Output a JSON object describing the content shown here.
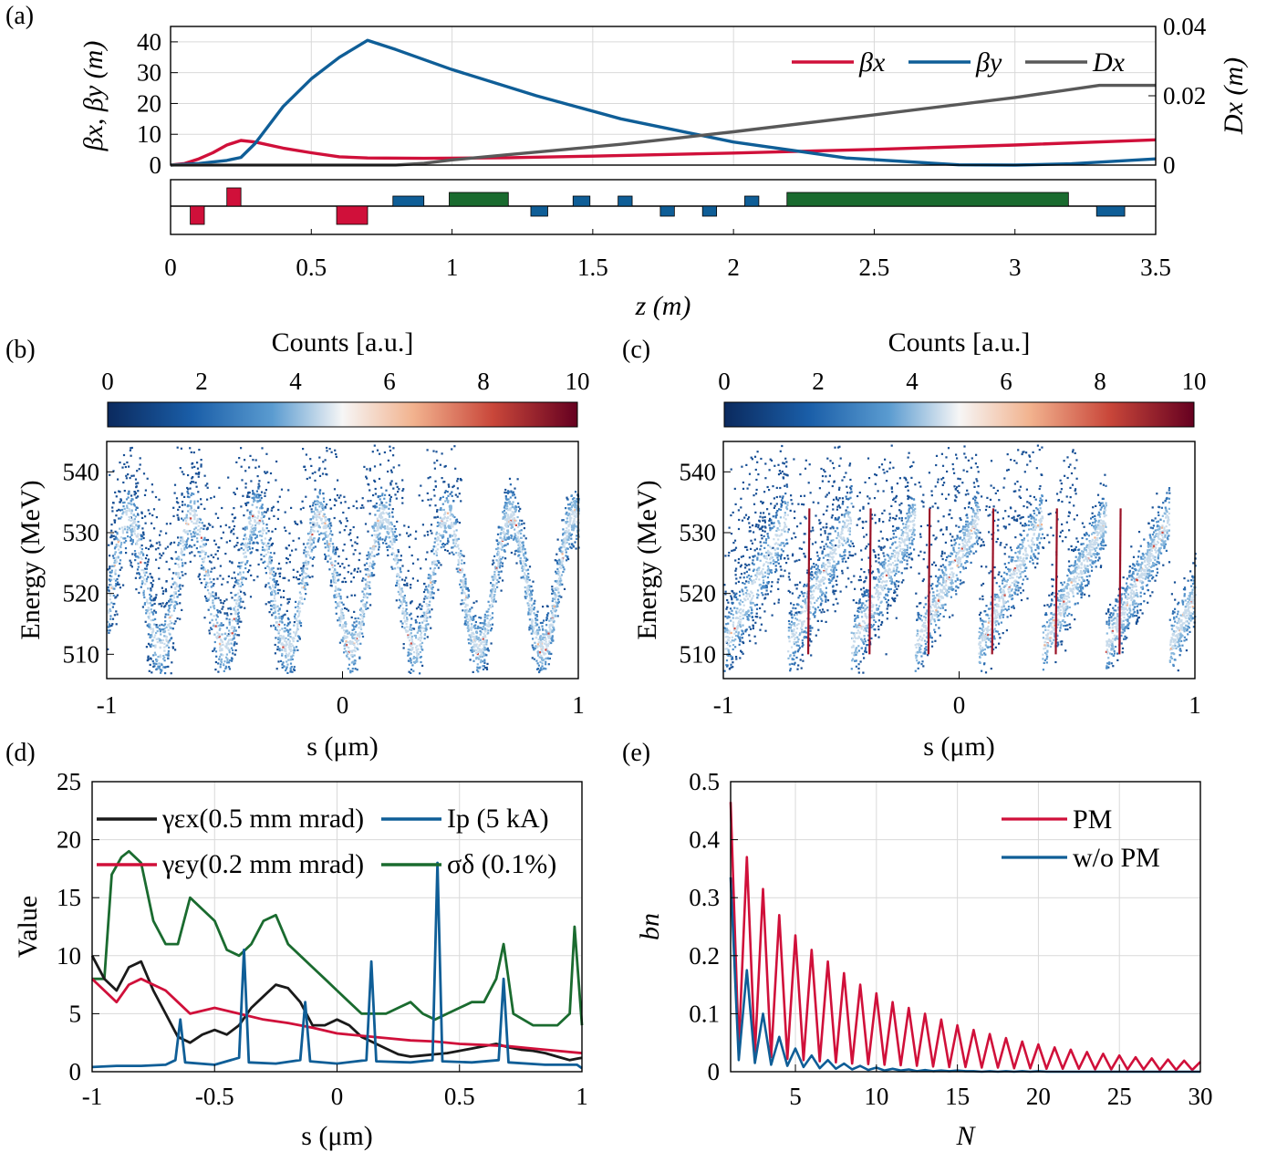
{
  "panel_labels": [
    "(a)",
    "(b)",
    "(c)",
    "(d)",
    "(e)"
  ],
  "colors": {
    "red": "#d0103a",
    "blue": "#0f5e97",
    "gray": "#595959",
    "green": "#1a6b2f",
    "black": "#1a1a1a",
    "grid": "#d9d9d9"
  },
  "chart_data": [
    {
      "id": "a",
      "type": "line",
      "xlabel": "z (m)",
      "ylabel": "βx, βy (m)",
      "ylabel_right": "Dx (m)",
      "xlim": [
        0,
        3.5
      ],
      "ylim": [
        0,
        45
      ],
      "ylim_right": [
        0,
        0.04
      ],
      "xticks": [
        "0",
        "0.5",
        "1",
        "1.5",
        "2",
        "2.5",
        "3",
        "3.5"
      ],
      "yticks": [
        "0",
        "10",
        "20",
        "30",
        "40"
      ],
      "yticks_right": [
        "0",
        "0.02",
        "0.04"
      ],
      "grid": true,
      "legend_placement": "top-right",
      "series": [
        {
          "name": "βx",
          "axis": "left",
          "color": "#d0103a",
          "x": [
            0,
            0.05,
            0.1,
            0.15,
            0.2,
            0.25,
            0.3,
            0.4,
            0.5,
            0.6,
            0.7,
            0.9,
            1.2,
            1.5,
            2.0,
            2.5,
            3.0,
            3.5
          ],
          "y": [
            0,
            0.5,
            2,
            4,
            6.5,
            8,
            7.5,
            5.5,
            4,
            2.7,
            2.3,
            2.2,
            2.4,
            2.9,
            3.9,
            5.1,
            6.5,
            8.2
          ]
        },
        {
          "name": "βy",
          "axis": "left",
          "color": "#0f5e97",
          "x": [
            0,
            0.1,
            0.15,
            0.2,
            0.25,
            0.3,
            0.35,
            0.4,
            0.5,
            0.6,
            0.7,
            0.8,
            1.0,
            1.3,
            1.6,
            2.0,
            2.4,
            2.8,
            3.0,
            3.2,
            3.5
          ],
          "y": [
            0,
            0.5,
            1,
            1.5,
            2.5,
            7,
            13,
            19,
            28,
            35,
            40.5,
            37.5,
            31,
            22.5,
            15,
            7.5,
            2.3,
            0.1,
            0,
            0.4,
            2
          ]
        },
        {
          "name": "Dx",
          "axis": "right",
          "color": "#595959",
          "x": [
            0,
            0.8,
            0.9,
            1.0,
            1.2,
            1.4,
            1.6,
            1.8,
            2.0,
            2.5,
            3.0,
            3.3,
            3.5
          ],
          "y": [
            0,
            0,
            0.0005,
            0.0015,
            0.003,
            0.0045,
            0.006,
            0.0078,
            0.0096,
            0.0145,
            0.0195,
            0.023,
            0.023
          ]
        }
      ],
      "lattice": [
        {
          "x0": 0.07,
          "x1": 0.12,
          "h": -1,
          "color": "#d0103a"
        },
        {
          "x0": 0.2,
          "x1": 0.25,
          "h": 1,
          "color": "#d0103a"
        },
        {
          "x0": 0.59,
          "x1": 0.7,
          "h": -1,
          "color": "#d0103a"
        },
        {
          "x0": 0.79,
          "x1": 0.9,
          "h": 0.55,
          "color": "#0f5e97"
        },
        {
          "x0": 0.99,
          "x1": 1.2,
          "h": 0.75,
          "color": "#1a6b2f"
        },
        {
          "x0": 1.28,
          "x1": 1.34,
          "h": -0.55,
          "color": "#0f5e97"
        },
        {
          "x0": 1.43,
          "x1": 1.49,
          "h": 0.55,
          "color": "#0f5e97"
        },
        {
          "x0": 1.59,
          "x1": 1.64,
          "h": 0.55,
          "color": "#0f5e97"
        },
        {
          "x0": 1.74,
          "x1": 1.79,
          "h": -0.55,
          "color": "#0f5e97"
        },
        {
          "x0": 1.89,
          "x1": 1.94,
          "h": -0.55,
          "color": "#0f5e97"
        },
        {
          "x0": 2.04,
          "x1": 2.09,
          "h": 0.55,
          "color": "#0f5e97"
        },
        {
          "x0": 2.19,
          "x1": 3.19,
          "h": 0.75,
          "color": "#1a6b2f"
        },
        {
          "x0": 3.29,
          "x1": 3.39,
          "h": -0.55,
          "color": "#0f5e97"
        }
      ]
    },
    {
      "id": "b",
      "type": "heatmap",
      "colorbar_label": "Counts [a.u.]",
      "colorbar_ticks": [
        "0",
        "2",
        "4",
        "6",
        "8",
        "10"
      ],
      "xlabel": "s (μm)",
      "ylabel": "Energy (MeV)",
      "xlim": [
        -1,
        1
      ],
      "ylim": [
        506,
        545
      ],
      "xticks": [
        "-1",
        "0",
        "1"
      ],
      "yticks": [
        "510",
        "520",
        "530",
        "540"
      ],
      "modulation": {
        "center_MeV": 522,
        "amplitude_MeV": 11,
        "period_um": 0.27,
        "form": "sinusoidal"
      }
    },
    {
      "id": "c",
      "type": "heatmap",
      "colorbar_label": "Counts [a.u.]",
      "colorbar_ticks": [
        "0",
        "2",
        "4",
        "6",
        "8",
        "10"
      ],
      "xlabel": "s (μm)",
      "ylabel": "Energy (MeV)",
      "xlim": [
        -1,
        1
      ],
      "ylim": [
        506,
        545
      ],
      "xticks": [
        "-1",
        "0",
        "1"
      ],
      "yticks": [
        "510",
        "520",
        "530",
        "540"
      ],
      "modulation": {
        "center_MeV": 522,
        "amplitude_MeV": 12,
        "period_um": 0.27,
        "form": "sawtooth",
        "spike_s_um": [
          -0.64,
          -0.38,
          -0.13,
          0.14,
          0.41,
          0.68
        ]
      }
    },
    {
      "id": "d",
      "type": "line",
      "xlabel": "s (μm)",
      "ylabel": "Value",
      "xlim": [
        -1,
        1
      ],
      "ylim": [
        0,
        25
      ],
      "xticks": [
        "-1",
        "-0.5",
        "0",
        "0.5",
        "1"
      ],
      "yticks": [
        "0",
        "5",
        "10",
        "15",
        "20",
        "25"
      ],
      "grid": true,
      "legend_placement": "top",
      "series": [
        {
          "name": "γεx(0.5 mm mrad)",
          "color": "#1a1a1a",
          "x": [
            -1,
            -0.95,
            -0.9,
            -0.85,
            -0.8,
            -0.75,
            -0.7,
            -0.65,
            -0.6,
            -0.55,
            -0.5,
            -0.45,
            -0.4,
            -0.35,
            -0.3,
            -0.25,
            -0.2,
            -0.15,
            -0.1,
            -0.05,
            0,
            0.05,
            0.1,
            0.15,
            0.2,
            0.25,
            0.3,
            0.35,
            0.4,
            0.45,
            0.5,
            0.55,
            0.6,
            0.65,
            0.7,
            0.75,
            0.8,
            0.85,
            0.9,
            0.95,
            1
          ],
          "y": [
            10,
            8,
            7,
            9,
            9.5,
            7,
            5,
            3,
            2.5,
            3.2,
            3.6,
            3.2,
            4,
            5.5,
            6.5,
            7.5,
            7.2,
            6,
            4,
            4,
            4.5,
            4,
            3,
            2.5,
            2,
            1.5,
            1.3,
            1.4,
            1.5,
            1.6,
            1.8,
            2,
            2.2,
            2.4,
            2.1,
            1.9,
            1.8,
            1.6,
            1.3,
            1,
            1.2
          ]
        },
        {
          "name": "Ip (5 kA)",
          "color": "#0f5e97",
          "x": [
            -1,
            -0.9,
            -0.8,
            -0.7,
            -0.66,
            -0.64,
            -0.62,
            -0.5,
            -0.4,
            -0.38,
            -0.36,
            -0.25,
            -0.15,
            -0.13,
            -0.11,
            0,
            0.12,
            0.14,
            0.16,
            0.3,
            0.39,
            0.41,
            0.43,
            0.55,
            0.66,
            0.68,
            0.7,
            0.85,
            0.98,
            1
          ],
          "y": [
            0.4,
            0.5,
            0.5,
            0.6,
            1,
            4.5,
            0.8,
            0.6,
            1.2,
            10.5,
            0.8,
            0.7,
            1,
            6,
            0.9,
            0.7,
            1,
            9.5,
            0.9,
            0.8,
            1,
            18,
            0.9,
            0.8,
            1,
            8,
            0.8,
            0.6,
            0.6,
            0.3
          ]
        },
        {
          "name": "γεy(0.2 mm mrad)",
          "color": "#d0103a",
          "x": [
            -1,
            -0.95,
            -0.9,
            -0.85,
            -0.8,
            -0.75,
            -0.7,
            -0.65,
            -0.6,
            -0.5,
            -0.4,
            -0.3,
            -0.2,
            -0.1,
            0,
            0.1,
            0.2,
            0.3,
            0.4,
            0.5,
            0.6,
            0.7,
            0.8,
            0.9,
            1
          ],
          "y": [
            8,
            7,
            6,
            7.5,
            8,
            7.5,
            7,
            6,
            5,
            5.5,
            5,
            4.5,
            4.2,
            3.8,
            3.3,
            3.1,
            2.9,
            2.7,
            2.6,
            2.4,
            2.3,
            2.2,
            2,
            1.8,
            1.6
          ]
        },
        {
          "name": "σδ (0.1%)",
          "color": "#1a6b2f",
          "x": [
            -1,
            -0.95,
            -0.92,
            -0.88,
            -0.85,
            -0.8,
            -0.75,
            -0.7,
            -0.65,
            -0.6,
            -0.55,
            -0.5,
            -0.45,
            -0.4,
            -0.35,
            -0.3,
            -0.25,
            -0.2,
            -0.15,
            -0.1,
            -0.05,
            0,
            0.05,
            0.1,
            0.15,
            0.2,
            0.25,
            0.3,
            0.35,
            0.4,
            0.45,
            0.5,
            0.55,
            0.6,
            0.65,
            0.68,
            0.72,
            0.8,
            0.9,
            0.95,
            0.97,
            1
          ],
          "y": [
            8,
            8,
            17,
            18.5,
            19,
            18,
            13,
            11,
            11,
            15,
            14,
            13,
            10.5,
            10,
            11,
            13,
            13.5,
            11,
            10,
            9,
            8,
            7,
            6,
            5,
            5,
            5,
            5.5,
            6,
            5,
            4.5,
            5,
            5.5,
            6,
            6,
            8,
            11,
            5,
            4,
            4,
            5,
            12.5,
            4
          ]
        }
      ]
    },
    {
      "id": "e",
      "type": "line",
      "xlabel": "N",
      "ylabel": "bn",
      "xlim": [
        1,
        30
      ],
      "ylim": [
        0,
        0.5
      ],
      "xticks": [
        "5",
        "10",
        "15",
        "20",
        "25",
        "30"
      ],
      "yticks": [
        "0",
        "0.1",
        "0.2",
        "0.3",
        "0.4",
        "0.5"
      ],
      "grid": true,
      "legend_placement": "top-right",
      "series": [
        {
          "name": "PM",
          "color": "#d0103a",
          "form": "peaks_at_integer_N",
          "N": [
            1,
            2,
            3,
            4,
            5,
            6,
            7,
            8,
            9,
            10,
            11,
            12,
            13,
            14,
            15,
            16,
            17,
            18,
            19,
            20,
            21,
            22,
            23,
            24,
            25,
            26,
            27,
            28,
            29,
            30
          ],
          "peak": [
            0.465,
            0.37,
            0.315,
            0.27,
            0.235,
            0.21,
            0.19,
            0.17,
            0.15,
            0.135,
            0.12,
            0.11,
            0.1,
            0.09,
            0.08,
            0.072,
            0.065,
            0.058,
            0.052,
            0.047,
            0.042,
            0.038,
            0.034,
            0.031,
            0.028,
            0.025,
            0.023,
            0.021,
            0.019,
            0.017
          ],
          "trough": [
            0.04,
            0.03,
            0.025,
            0.022,
            0.02,
            0.018,
            0.016,
            0.014,
            0.013,
            0.012,
            0.011,
            0.01,
            0.009,
            0.008,
            0.008,
            0.007,
            0.007,
            0.006,
            0.006,
            0.005,
            0.005,
            0.005,
            0.004,
            0.004,
            0.004,
            0.004,
            0.003,
            0.003,
            0.003,
            0.003
          ]
        },
        {
          "name": "w/o PM",
          "color": "#0f5e97",
          "form": "peaks_at_integer_N",
          "N": [
            1,
            2,
            3,
            4,
            5,
            6,
            7,
            8,
            9,
            10,
            11,
            12,
            13,
            14,
            15,
            16,
            17,
            18,
            19,
            20,
            21,
            22,
            23,
            24,
            25,
            26,
            27,
            28,
            29,
            30
          ],
          "peak": [
            0.335,
            0.175,
            0.1,
            0.06,
            0.04,
            0.028,
            0.02,
            0.014,
            0.01,
            0.007,
            0.005,
            0.004,
            0.003,
            0.002,
            0.002,
            0.001,
            0.001,
            0.001,
            0.001,
            0.001,
            0,
            0,
            0,
            0,
            0,
            0,
            0,
            0,
            0,
            0
          ],
          "trough": [
            0.02,
            0.015,
            0.012,
            0.01,
            0.008,
            0.006,
            0.005,
            0.004,
            0.003,
            0.002,
            0.002,
            0.001,
            0.001,
            0.001,
            0.001,
            0,
            0,
            0,
            0,
            0,
            0,
            0,
            0,
            0,
            0,
            0,
            0,
            0,
            0,
            0
          ]
        }
      ]
    }
  ]
}
